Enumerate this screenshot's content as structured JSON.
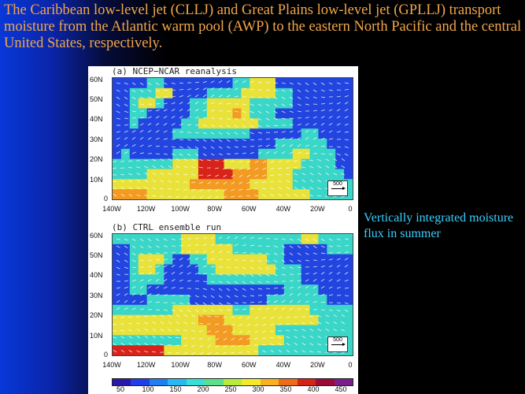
{
  "headline": "The Caribbean low-level jet (CLLJ) and Great Plains low-level jet (GPLLJ) transport moisture from the Atlantic warm pool (AWP) to the eastern North Pacific and the central United States, respectively.",
  "side_caption": "Vertically integrated moisture flux in summer",
  "panels": [
    {
      "title": "(a) NCEP−NCAR reanalysis",
      "ref_vector": "500"
    },
    {
      "title": "(b) CTRL ensemble run",
      "ref_vector": "500"
    }
  ],
  "lat_ticks": [
    "60N",
    "50N",
    "40N",
    "30N",
    "20N",
    "10N",
    "0"
  ],
  "lon_ticks": [
    "140W",
    "120W",
    "100W",
    "80W",
    "60W",
    "40W",
    "20W",
    "0"
  ],
  "colorbar": {
    "labels": [
      "50",
      "100",
      "150",
      "200",
      "250",
      "300",
      "350",
      "400",
      "450"
    ],
    "colors": [
      "#2a1aa8",
      "#1f3fe8",
      "#1f7ff0",
      "#28b8f2",
      "#37e0d6",
      "#5ee08a",
      "#b8ec3c",
      "#f4ea2a",
      "#f7b21d",
      "#ef6b17",
      "#d52314",
      "#9a0b3a",
      "#7a1f8c"
    ]
  },
  "fields": {
    "a": [
      "BBBBGGBBBBBBBBGGYYYBBBBBBBBB",
      "BBGGGYYBBBBGGGGYYYYGGBBBBBBB",
      "BBGYYGBBBGGYYYYYGGGGGBBBBBBB",
      "BBGGBBBBBGGYYYOYGGGBBBBBBBBB",
      "BBGBBBBBGGYYYYYYYGGGGBBBBBBB",
      "BBBBBBBGGGGGGGGGBBBBBBGGBBBB",
      "BBBBBBBBBBBBBBBBBBBGGGGGGBBB",
      "BGBBBBBGGGBBBBBBBGGGGYYGGGBB",
      "GGGGGGGYYYRRRYYYOOYYYYGGGGBB",
      "GGGGYYYYYYRRRROOOOYYYGGGGGGB",
      "YYYYYYYYYOOOOOOOYYYYYGGGGGGG",
      "OOOOYYYYYYYYYOOOOYYYYYYGGGGG"
    ],
    "b": [
      "GGGGGGGGYYYYGGGGGGGGGGYYGGGG",
      "BBGGGGGGYYYYYYGGGGGGBBBBBGGG",
      "BBGYYYGBBGGYYYYYYYGGBBBBBBBB",
      "BBGYYGBBBBGGYYYYYYYGGGBBBBBB",
      "BBGGGGBBBBBGGGGGGGGGGGBBBBBB",
      "BBGGBBBBBBBBBBBBBBBBGGGGBBBB",
      "BBBBGGGGGBBBBBBBBBGGGGGGGBBB",
      "GGGGGGGYYYYYYYGGYYYYYYYGGGGG",
      "YYYYYYYYYYOOOYYYYYYYYYYYGGGG",
      "YYYYYYYYYYYOOOYYYYYGGGGGGGGG",
      "GGGGGGGGYYYYOOOOYYYYGGGGGGGG",
      "RRRRRRYYYYYYYYYYYGGGGGGGGGGG"
    ]
  }
}
